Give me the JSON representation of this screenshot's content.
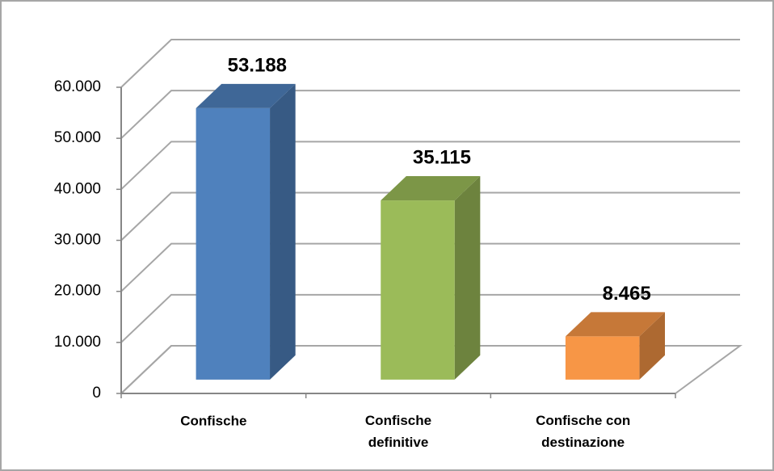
{
  "chart_data": {
    "type": "bar3d",
    "categories": [
      "Confische",
      "Confische definitive",
      "Confische con destinazione"
    ],
    "values": [
      53188,
      35115,
      8465
    ],
    "value_labels": [
      "53.188",
      "35.115",
      "8.465"
    ],
    "colors": [
      "#4f81bd",
      "#9bbb59",
      "#f79646"
    ],
    "ylim": [
      0,
      60000
    ],
    "yticks": [
      {
        "value": 0,
        "label": "0"
      },
      {
        "value": 10000,
        "label": "10.000"
      },
      {
        "value": 20000,
        "label": "20.000"
      },
      {
        "value": 30000,
        "label": "30.000"
      },
      {
        "value": 40000,
        "label": "40.000"
      },
      {
        "value": 50000,
        "label": "50.000"
      },
      {
        "value": 60000,
        "label": "60.000"
      }
    ],
    "grid": true
  }
}
